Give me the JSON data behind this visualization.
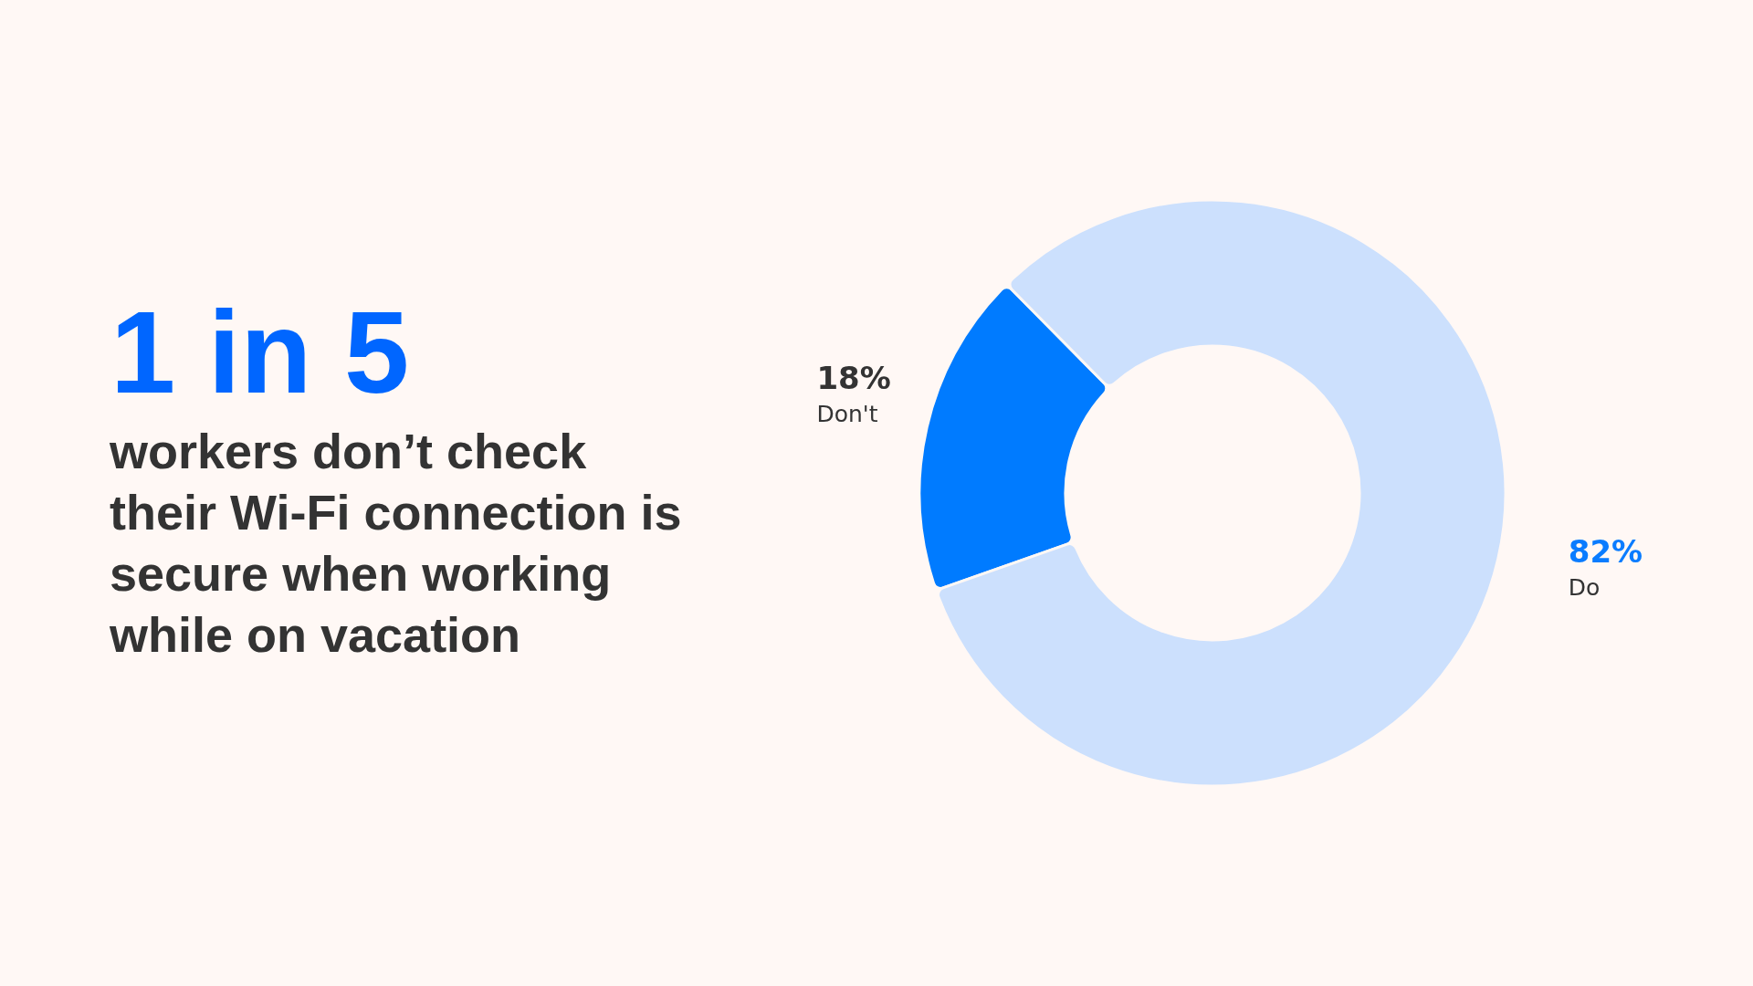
{
  "chart_data": {
    "type": "donut",
    "title": "1 in 5",
    "subtitle": "workers don’t check\ntheir Wi-Fi connection is\nsecure when working\nwhile on vacation",
    "categories": [
      "Don't",
      "Do"
    ],
    "values": [
      18,
      82
    ],
    "colors": [
      "#007bff",
      "#cce0fd"
    ],
    "value_labels": [
      "18%",
      "82%"
    ]
  }
}
